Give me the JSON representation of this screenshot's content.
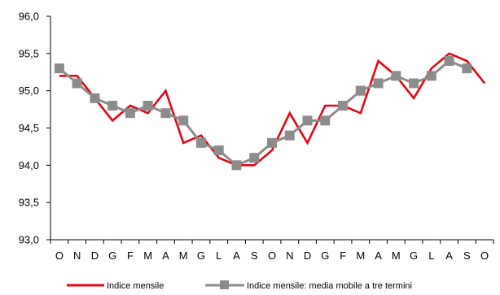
{
  "chart_data": {
    "type": "line",
    "categories": [
      "O",
      "N",
      "D",
      "G",
      "F",
      "M",
      "A",
      "M",
      "G",
      "L",
      "A",
      "S",
      "O",
      "N",
      "D",
      "G",
      "F",
      "M",
      "A",
      "M",
      "G",
      "L",
      "A",
      "S",
      "O"
    ],
    "ylim": [
      93.0,
      96.0
    ],
    "yticks": [
      93.0,
      93.5,
      94.0,
      94.5,
      95.0,
      95.5,
      96.0
    ],
    "ytick_labels": [
      "93,0",
      "93,5",
      "94,0",
      "94,5",
      "95,0",
      "95,5",
      "96,0"
    ],
    "series": [
      {
        "name": "Indice mensile",
        "color": "#e30613",
        "marker": "none",
        "values": [
          95.2,
          95.2,
          94.9,
          94.6,
          94.8,
          94.7,
          95.0,
          94.3,
          94.4,
          94.1,
          94.0,
          94.0,
          94.2,
          94.7,
          94.3,
          94.8,
          94.8,
          94.7,
          95.4,
          95.2,
          94.9,
          95.3,
          95.5,
          95.4,
          95.1
        ]
      },
      {
        "name": "Indice mensile: media mobile a tre termini",
        "color": "#8c8c8c",
        "marker": "square",
        "values": [
          95.3,
          95.1,
          94.9,
          94.8,
          94.7,
          94.8,
          94.7,
          94.6,
          94.3,
          94.2,
          94.0,
          94.1,
          94.3,
          94.4,
          94.6,
          94.6,
          94.8,
          95.0,
          95.1,
          95.2,
          95.1,
          95.2,
          95.4,
          95.3,
          null
        ]
      }
    ],
    "legend_position": "bottom",
    "grid": false
  }
}
